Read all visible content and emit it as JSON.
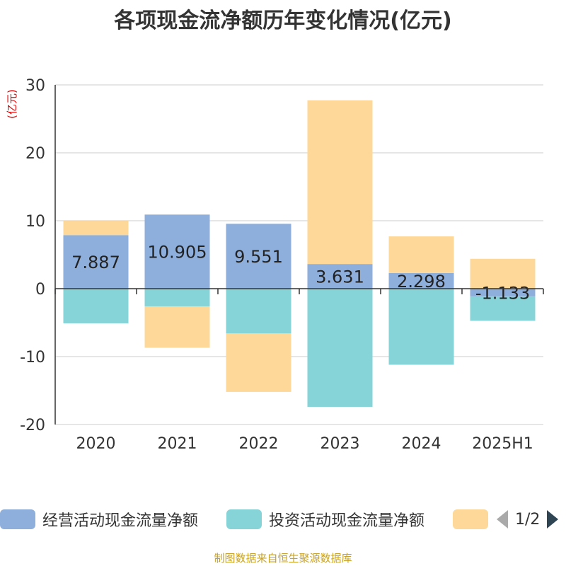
{
  "title": "各项现金流净额历年变化情况(亿元)",
  "footer": "制图数据来自恒生聚源数据库",
  "legend_page": "1/2",
  "chart_data": {
    "type": "bar",
    "stacked": true,
    "title": "各项现金流净额历年变化情况(亿元)",
    "ylabel": "(亿元)",
    "ylim": [
      -20,
      30
    ],
    "yticks": [
      -20,
      -10,
      0,
      10,
      20,
      30
    ],
    "grid": true,
    "categories": [
      "2020",
      "2021",
      "2022",
      "2023",
      "2024",
      "2025H1"
    ],
    "series": [
      {
        "name": "经营活动现金流量净额",
        "color": "#8eaedb",
        "values": [
          7.887,
          10.905,
          9.551,
          3.631,
          2.298,
          -1.133
        ],
        "labels": [
          "7.887",
          "10.905",
          "9.551",
          "3.631",
          "2.298",
          "-1.133"
        ]
      },
      {
        "name": "投资活动现金流量净额",
        "color": "#86d4d8",
        "values": [
          -5.1,
          -2.6,
          -6.6,
          -17.4,
          -11.2,
          -3.6
        ]
      },
      {
        "name": "",
        "color": "#fed898",
        "values": [
          2.1,
          -6.1,
          -8.6,
          24.1,
          5.4,
          4.4
        ]
      }
    ]
  }
}
